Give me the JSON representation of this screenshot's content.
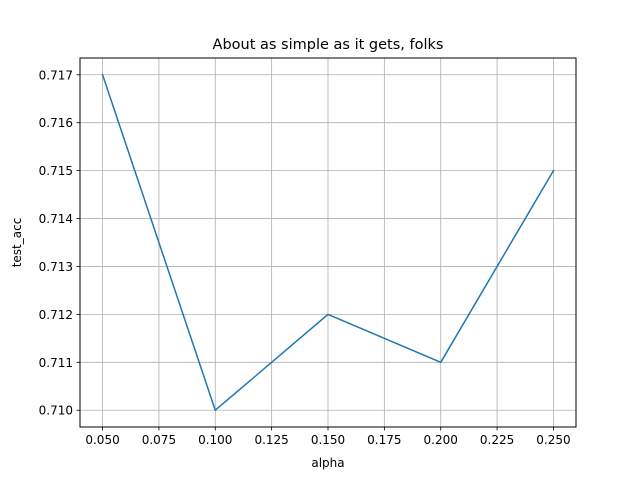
{
  "chart_data": {
    "type": "line",
    "title": "About as simple as it gets, folks",
    "xlabel": "alpha",
    "ylabel": "test_acc",
    "x": [
      0.05,
      0.1,
      0.15,
      0.2,
      0.25
    ],
    "series": [
      {
        "values": [
          0.717,
          0.71,
          0.712,
          0.711,
          0.715
        ]
      }
    ],
    "xlim": [
      0.04,
      0.26
    ],
    "ylim": [
      0.70965,
      0.71735
    ],
    "xticks": [
      "0.050",
      "0.075",
      "0.100",
      "0.125",
      "0.150",
      "0.175",
      "0.200",
      "0.225",
      "0.250"
    ],
    "yticks": [
      "0.710",
      "0.711",
      "0.712",
      "0.713",
      "0.714",
      "0.715",
      "0.716",
      "0.717"
    ],
    "grid": true,
    "colors": {
      "line": "#1f77b4",
      "grid": "#b0b0b0",
      "axes": "#000000"
    }
  }
}
